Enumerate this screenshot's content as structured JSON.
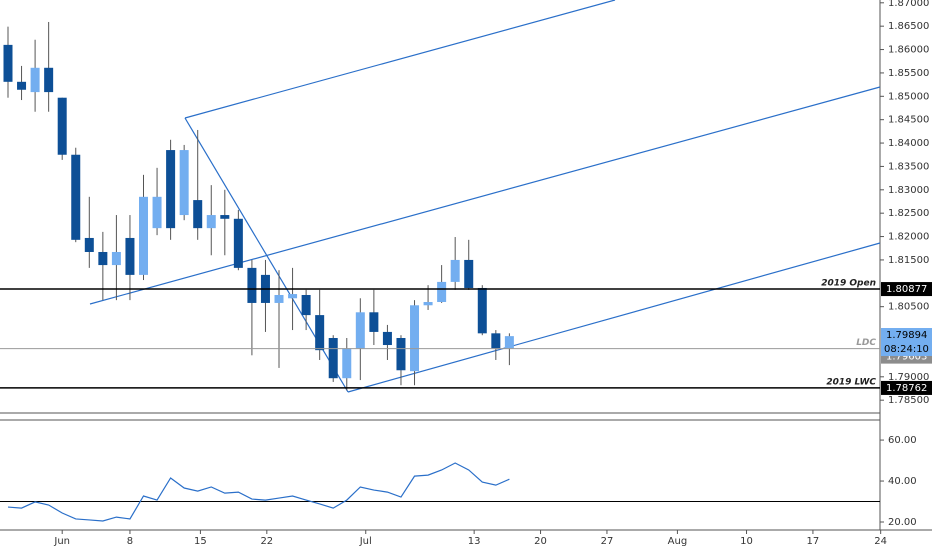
{
  "chart_data": [
    {
      "type": "candlestick",
      "x": [
        0,
        1,
        2,
        3,
        4,
        5,
        6,
        7,
        8,
        9,
        10,
        11,
        12,
        13,
        14,
        15,
        16,
        17,
        18,
        19,
        20,
        21,
        22,
        23,
        24,
        25,
        26,
        27,
        28,
        29,
        30,
        31,
        32,
        33,
        34,
        35,
        36,
        37
      ],
      "open": [
        1.861,
        1.8531,
        1.8509,
        1.8561,
        1.8497,
        1.8375,
        1.8197,
        1.8167,
        1.8139,
        1.8197,
        1.8118,
        1.8218,
        1.8385,
        1.8246,
        1.8278,
        1.8218,
        1.8246,
        1.8238,
        1.8133,
        1.8118,
        1.8058,
        1.8068,
        1.8075,
        1.8032,
        1.7983,
        1.7897,
        1.7961,
        1.8038,
        1.7996,
        1.7983,
        1.7912,
        1.8053,
        1.806,
        1.8103,
        1.815,
        1.809,
        1.7993,
        1.7961
      ],
      "high": [
        1.8649,
        1.8565,
        1.8621,
        1.8659,
        1.8497,
        1.839,
        1.8285,
        1.821,
        1.8246,
        1.8246,
        1.8332,
        1.8347,
        1.8407,
        1.8396,
        1.8428,
        1.831,
        1.83,
        1.8257,
        1.815,
        1.815,
        1.8128,
        1.8133,
        1.8086,
        1.8086,
        1.7989,
        1.7983,
        1.8068,
        1.8086,
        1.8011,
        1.7989,
        1.8064,
        1.8096,
        1.8139,
        1.8199,
        1.8193,
        1.8096,
        1.8,
        1.7993
      ],
      "low": [
        1.8497,
        1.8492,
        1.8467,
        1.8467,
        1.8364,
        1.8188,
        1.8133,
        1.8064,
        1.8064,
        1.8064,
        1.8107,
        1.8203,
        1.8193,
        1.8235,
        1.8193,
        1.816,
        1.816,
        1.8128,
        1.7946,
        1.7996,
        1.7919,
        1.8,
        1.8,
        1.7936,
        1.7889,
        1.7871,
        1.7893,
        1.7968,
        1.7936,
        1.7882,
        1.7882,
        1.8043,
        1.8058,
        1.8086,
        1.8086,
        1.7989,
        1.7936,
        1.7925
      ],
      "close": [
        1.8531,
        1.8514,
        1.8561,
        1.8509,
        1.8375,
        1.8193,
        1.8167,
        1.8139,
        1.8167,
        1.8118,
        1.8285,
        1.8285,
        1.8218,
        1.8385,
        1.8218,
        1.8246,
        1.8238,
        1.8133,
        1.8058,
        1.8058,
        1.8075,
        1.8077,
        1.8032,
        1.7957,
        1.7897,
        1.7961,
        1.8038,
        1.7996,
        1.7968,
        1.7914,
        1.8053,
        1.806,
        1.8103,
        1.815,
        1.809,
        1.7993,
        1.7961,
        1.7987
      ],
      "up_color": "#73aef0",
      "down_color": "#0d4f96",
      "xlim": [
        -0.59,
        64.35
      ],
      "ylim": [
        1.7829,
        1.8706
      ],
      "yticks": [
        {
          "value": 1.87,
          "label": "1.87000"
        },
        {
          "value": 1.865,
          "label": "1.86500"
        },
        {
          "value": 1.86,
          "label": "1.86000"
        },
        {
          "value": 1.855,
          "label": "1.85500"
        },
        {
          "value": 1.85,
          "label": "1.85000"
        },
        {
          "value": 1.845,
          "label": "1.84500"
        },
        {
          "value": 1.84,
          "label": "1.84000"
        },
        {
          "value": 1.835,
          "label": "1.83500"
        },
        {
          "value": 1.83,
          "label": "1.83000"
        },
        {
          "value": 1.825,
          "label": "1.82500"
        },
        {
          "value": 1.82,
          "label": "1.82000"
        },
        {
          "value": 1.815,
          "label": "1.81500"
        },
        {
          "value": 1.805,
          "label": "1.80500"
        },
        {
          "value": 1.79,
          "label": "1.79000"
        },
        {
          "value": 1.785,
          "label": "1.78500"
        }
      ],
      "levels": [
        {
          "label": "2019 Open",
          "value": 1.80877,
          "value_label": "1.80877",
          "color": "#000000"
        },
        {
          "label": "LDC",
          "value": 1.79603,
          "value_label": "1.79603",
          "color": "#999999"
        },
        {
          "label": "2019 LWC",
          "value": 1.78762,
          "value_label": "1.78762",
          "color": "#000000"
        }
      ],
      "last_price": {
        "value": 1.79894,
        "value_label": "1.79894",
        "countdown": "08:24:10",
        "color": "#73aef0"
      }
    },
    {
      "type": "line",
      "x": [
        0,
        1,
        2,
        3,
        4,
        5,
        6,
        7,
        8,
        9,
        10,
        11,
        12,
        13,
        14,
        15,
        16,
        17,
        18,
        19,
        20,
        21,
        22,
        23,
        24,
        25,
        26,
        27,
        28,
        29,
        30,
        31,
        32,
        33,
        34,
        35,
        36,
        37
      ],
      "values": [
        27.3,
        26.8,
        29.8,
        28.3,
        24.4,
        21.5,
        21.0,
        20.5,
        22.4,
        21.5,
        32.7,
        30.7,
        41.5,
        36.6,
        35.1,
        37.1,
        34.1,
        34.6,
        31.2,
        30.7,
        31.7,
        32.7,
        30.7,
        28.8,
        26.8,
        30.7,
        37.1,
        35.6,
        34.6,
        32.2,
        42.4,
        42.9,
        45.4,
        48.8,
        45.4,
        39.5,
        38.0,
        40.9
      ],
      "color": "#2a6fc9",
      "reference": 30,
      "xlim": [
        -0.59,
        64.35
      ],
      "ylim": [
        16.1,
        69.8
      ],
      "yticks": [
        {
          "value": 60,
          "label": "60.00"
        },
        {
          "value": 40,
          "label": "40.00"
        },
        {
          "value": 20,
          "label": "20.00"
        }
      ],
      "xticks": [
        {
          "value": 4.0,
          "label": "Jun"
        },
        {
          "value": 9.0,
          "label": "8"
        },
        {
          "value": 14.2,
          "label": "15"
        },
        {
          "value": 19.1,
          "label": "22"
        },
        {
          "value": 26.4,
          "label": "Jul"
        },
        {
          "value": 34.4,
          "label": "13"
        },
        {
          "value": 39.3,
          "label": "20"
        },
        {
          "value": 44.2,
          "label": "27"
        },
        {
          "value": 49.4,
          "label": "Aug"
        },
        {
          "value": 54.5,
          "label": "10"
        },
        {
          "value": 59.4,
          "label": "17"
        },
        {
          "value": 64.4,
          "label": "24"
        }
      ]
    }
  ]
}
